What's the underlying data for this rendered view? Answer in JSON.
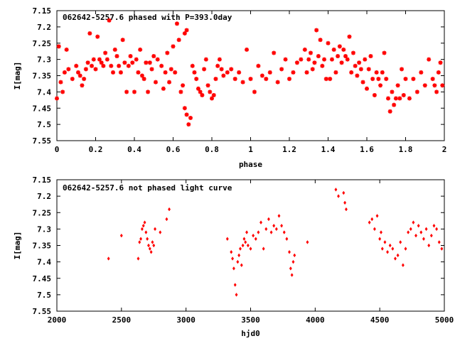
{
  "chart_data": [
    {
      "type": "scatter",
      "title": "062642-5257.6 phased with P=393.0day",
      "xlabel": "phase",
      "ylabel": "I[mag]",
      "xlim": [
        0,
        2
      ],
      "ylim": [
        7.15,
        7.55
      ],
      "y_inverted": true,
      "x_ticks": [
        0,
        0.2,
        0.4,
        0.6,
        0.8,
        1,
        1.2,
        1.4,
        1.6,
        1.8,
        2
      ],
      "x_tick_labels": [
        "0",
        "0.2",
        "0.4",
        "0.6",
        "0.8",
        "1",
        "1.2",
        "1.4",
        "1.6",
        "1.8",
        "2"
      ],
      "y_ticks": [
        7.15,
        7.2,
        7.25,
        7.3,
        7.35,
        7.4,
        7.45,
        7.5,
        7.55
      ],
      "y_tick_labels": [
        "7.15",
        "7.2",
        "7.25",
        "7.3",
        "7.35",
        "7.4",
        "7.45",
        "7.5",
        "7.55"
      ],
      "grid": false,
      "marker": "star",
      "color": "#ff0000",
      "series": [
        {
          "points": [
            [
              0.0,
              7.42
            ],
            [
              0.01,
              7.26
            ],
            [
              0.02,
              7.37
            ],
            [
              0.03,
              7.4
            ],
            [
              0.04,
              7.34
            ],
            [
              0.05,
              7.27
            ],
            [
              0.06,
              7.33
            ],
            [
              0.08,
              7.36
            ],
            [
              0.1,
              7.32
            ],
            [
              0.11,
              7.34
            ],
            [
              0.12,
              7.35
            ],
            [
              0.13,
              7.38
            ],
            [
              0.14,
              7.36
            ],
            [
              0.15,
              7.33
            ],
            [
              0.16,
              7.31
            ],
            [
              0.17,
              7.22
            ],
            [
              0.18,
              7.32
            ],
            [
              0.19,
              7.3
            ],
            [
              0.2,
              7.33
            ],
            [
              0.21,
              7.23
            ],
            [
              0.22,
              7.3
            ],
            [
              0.23,
              7.31
            ],
            [
              0.24,
              7.32
            ],
            [
              0.25,
              7.28
            ],
            [
              0.26,
              7.3
            ],
            [
              0.27,
              7.18
            ],
            [
              0.28,
              7.32
            ],
            [
              0.29,
              7.34
            ],
            [
              0.3,
              7.27
            ],
            [
              0.31,
              7.29
            ],
            [
              0.32,
              7.32
            ],
            [
              0.33,
              7.34
            ],
            [
              0.34,
              7.24
            ],
            [
              0.35,
              7.31
            ],
            [
              0.36,
              7.4
            ],
            [
              0.37,
              7.32
            ],
            [
              0.38,
              7.29
            ],
            [
              0.39,
              7.31
            ],
            [
              0.4,
              7.4
            ],
            [
              0.41,
              7.3
            ],
            [
              0.42,
              7.34
            ],
            [
              0.43,
              7.27
            ],
            [
              0.44,
              7.35
            ],
            [
              0.45,
              7.36
            ],
            [
              0.46,
              7.31
            ],
            [
              0.47,
              7.4
            ],
            [
              0.48,
              7.31
            ],
            [
              0.49,
              7.33
            ],
            [
              0.5,
              7.29
            ],
            [
              0.51,
              7.37
            ],
            [
              0.52,
              7.3
            ],
            [
              0.54,
              7.32
            ],
            [
              0.55,
              7.39
            ],
            [
              0.56,
              7.34
            ],
            [
              0.57,
              7.28
            ],
            [
              0.58,
              7.37
            ],
            [
              0.59,
              7.33
            ],
            [
              0.6,
              7.26
            ],
            [
              0.61,
              7.34
            ],
            [
              0.62,
              7.19
            ],
            [
              0.63,
              7.24
            ],
            [
              0.64,
              7.4
            ],
            [
              0.65,
              7.38
            ],
            [
              0.66,
              7.22
            ],
            [
              0.67,
              7.21
            ],
            [
              0.66,
              7.45
            ],
            [
              0.67,
              7.47
            ],
            [
              0.68,
              7.5
            ],
            [
              0.69,
              7.48
            ],
            [
              0.7,
              7.32
            ],
            [
              0.71,
              7.34
            ],
            [
              0.72,
              7.36
            ],
            [
              0.73,
              7.39
            ],
            [
              0.74,
              7.4
            ],
            [
              0.75,
              7.41
            ],
            [
              0.76,
              7.33
            ],
            [
              0.77,
              7.3
            ],
            [
              0.78,
              7.38
            ],
            [
              0.79,
              7.4
            ],
            [
              0.8,
              7.42
            ],
            [
              0.81,
              7.41
            ],
            [
              0.82,
              7.36
            ],
            [
              0.83,
              7.32
            ],
            [
              0.84,
              7.3
            ],
            [
              0.85,
              7.33
            ],
            [
              0.86,
              7.35
            ],
            [
              0.88,
              7.34
            ],
            [
              0.9,
              7.33
            ],
            [
              0.92,
              7.36
            ],
            [
              0.94,
              7.34
            ],
            [
              0.96,
              7.37
            ],
            [
              0.98,
              7.27
            ],
            [
              1.0,
              7.36
            ],
            [
              1.02,
              7.4
            ],
            [
              1.04,
              7.32
            ],
            [
              1.06,
              7.35
            ],
            [
              1.08,
              7.36
            ],
            [
              1.1,
              7.34
            ],
            [
              1.12,
              7.28
            ],
            [
              1.14,
              7.37
            ],
            [
              1.16,
              7.33
            ],
            [
              1.18,
              7.3
            ],
            [
              1.2,
              7.36
            ],
            [
              1.22,
              7.34
            ],
            [
              1.24,
              7.31
            ],
            [
              1.26,
              7.3
            ],
            [
              1.28,
              7.27
            ],
            [
              1.29,
              7.34
            ],
            [
              1.3,
              7.3
            ],
            [
              1.31,
              7.28
            ],
            [
              1.32,
              7.33
            ],
            [
              1.33,
              7.31
            ],
            [
              1.34,
              7.21
            ],
            [
              1.35,
              7.29
            ],
            [
              1.36,
              7.24
            ],
            [
              1.37,
              7.32
            ],
            [
              1.38,
              7.3
            ],
            [
              1.39,
              7.36
            ],
            [
              1.4,
              7.25
            ],
            [
              1.41,
              7.36
            ],
            [
              1.42,
              7.3
            ],
            [
              1.43,
              7.27
            ],
            [
              1.44,
              7.34
            ],
            [
              1.45,
              7.29
            ],
            [
              1.46,
              7.26
            ],
            [
              1.47,
              7.31
            ],
            [
              1.48,
              7.27
            ],
            [
              1.49,
              7.29
            ],
            [
              1.5,
              7.3
            ],
            [
              1.51,
              7.23
            ],
            [
              1.52,
              7.34
            ],
            [
              1.53,
              7.28
            ],
            [
              1.54,
              7.32
            ],
            [
              1.55,
              7.35
            ],
            [
              1.56,
              7.31
            ],
            [
              1.57,
              7.33
            ],
            [
              1.58,
              7.37
            ],
            [
              1.59,
              7.3
            ],
            [
              1.6,
              7.39
            ],
            [
              1.61,
              7.33
            ],
            [
              1.62,
              7.29
            ],
            [
              1.63,
              7.36
            ],
            [
              1.64,
              7.41
            ],
            [
              1.65,
              7.34
            ],
            [
              1.66,
              7.36
            ],
            [
              1.67,
              7.38
            ],
            [
              1.68,
              7.34
            ],
            [
              1.69,
              7.28
            ],
            [
              1.7,
              7.36
            ],
            [
              1.71,
              7.42
            ],
            [
              1.72,
              7.46
            ],
            [
              1.73,
              7.4
            ],
            [
              1.74,
              7.44
            ],
            [
              1.75,
              7.42
            ],
            [
              1.76,
              7.38
            ],
            [
              1.77,
              7.42
            ],
            [
              1.78,
              7.33
            ],
            [
              1.79,
              7.41
            ],
            [
              1.8,
              7.36
            ],
            [
              1.82,
              7.42
            ],
            [
              1.84,
              7.36
            ],
            [
              1.86,
              7.4
            ],
            [
              1.88,
              7.34
            ],
            [
              1.9,
              7.38
            ],
            [
              1.92,
              7.3
            ],
            [
              1.94,
              7.36
            ],
            [
              1.95,
              7.38
            ],
            [
              1.96,
              7.4
            ],
            [
              1.97,
              7.34
            ],
            [
              1.98,
              7.31
            ],
            [
              1.99,
              7.38
            ]
          ]
        }
      ]
    },
    {
      "type": "scatter",
      "title": "062642-5257.6 not phased light curve",
      "xlabel": "hjd0",
      "ylabel": "I[mag]",
      "xlim": [
        2000,
        5000
      ],
      "ylim": [
        7.15,
        7.55
      ],
      "y_inverted": true,
      "x_ticks": [
        2000,
        2500,
        3000,
        3500,
        4000,
        4500,
        5000
      ],
      "x_tick_labels": [
        "2000",
        "2500",
        "3000",
        "3500",
        "4000",
        "4500",
        "5000"
      ],
      "y_ticks": [
        7.15,
        7.2,
        7.25,
        7.3,
        7.35,
        7.4,
        7.45,
        7.5,
        7.55
      ],
      "y_tick_labels": [
        "7.15",
        "7.2",
        "7.25",
        "7.3",
        "7.35",
        "7.4",
        "7.45",
        "7.5",
        "7.55"
      ],
      "grid": false,
      "marker": "diamond",
      "color": "#ff0000",
      "series": [
        {
          "points": [
            [
              2400,
              7.39
            ],
            [
              2500,
              7.32
            ],
            [
              2630,
              7.39
            ],
            [
              2640,
              7.34
            ],
            [
              2650,
              7.33
            ],
            [
              2660,
              7.3
            ],
            [
              2670,
              7.29
            ],
            [
              2680,
              7.28
            ],
            [
              2690,
              7.31
            ],
            [
              2700,
              7.33
            ],
            [
              2710,
              7.35
            ],
            [
              2720,
              7.36
            ],
            [
              2730,
              7.37
            ],
            [
              2740,
              7.34
            ],
            [
              2750,
              7.35
            ],
            [
              2760,
              7.3
            ],
            [
              2800,
              7.31
            ],
            [
              2850,
              7.27
            ],
            [
              2870,
              7.24
            ],
            [
              3320,
              7.33
            ],
            [
              3350,
              7.37
            ],
            [
              3360,
              7.39
            ],
            [
              3370,
              7.42
            ],
            [
              3380,
              7.47
            ],
            [
              3390,
              7.5
            ],
            [
              3400,
              7.4
            ],
            [
              3410,
              7.38
            ],
            [
              3420,
              7.36
            ],
            [
              3430,
              7.41
            ],
            [
              3440,
              7.35
            ],
            [
              3450,
              7.33
            ],
            [
              3460,
              7.34
            ],
            [
              3470,
              7.31
            ],
            [
              3480,
              7.35
            ],
            [
              3500,
              7.36
            ],
            [
              3520,
              7.32
            ],
            [
              3540,
              7.33
            ],
            [
              3560,
              7.31
            ],
            [
              3580,
              7.28
            ],
            [
              3600,
              7.36
            ],
            [
              3620,
              7.3
            ],
            [
              3640,
              7.27
            ],
            [
              3660,
              7.31
            ],
            [
              3680,
              7.29
            ],
            [
              3700,
              7.3
            ],
            [
              3720,
              7.26
            ],
            [
              3740,
              7.29
            ],
            [
              3760,
              7.31
            ],
            [
              3780,
              7.33
            ],
            [
              3800,
              7.37
            ],
            [
              3810,
              7.42
            ],
            [
              3820,
              7.44
            ],
            [
              3830,
              7.4
            ],
            [
              3840,
              7.38
            ],
            [
              3940,
              7.34
            ],
            [
              4160,
              7.18
            ],
            [
              4180,
              7.2
            ],
            [
              4220,
              7.19
            ],
            [
              4230,
              7.22
            ],
            [
              4240,
              7.24
            ],
            [
              4420,
              7.28
            ],
            [
              4440,
              7.27
            ],
            [
              4460,
              7.3
            ],
            [
              4480,
              7.26
            ],
            [
              4500,
              7.33
            ],
            [
              4510,
              7.31
            ],
            [
              4520,
              7.36
            ],
            [
              4540,
              7.34
            ],
            [
              4560,
              7.37
            ],
            [
              4580,
              7.35
            ],
            [
              4600,
              7.36
            ],
            [
              4620,
              7.39
            ],
            [
              4640,
              7.38
            ],
            [
              4660,
              7.34
            ],
            [
              4680,
              7.41
            ],
            [
              4700,
              7.36
            ],
            [
              4720,
              7.31
            ],
            [
              4740,
              7.3
            ],
            [
              4760,
              7.28
            ],
            [
              4780,
              7.32
            ],
            [
              4800,
              7.29
            ],
            [
              4820,
              7.31
            ],
            [
              4840,
              7.33
            ],
            [
              4860,
              7.3
            ],
            [
              4880,
              7.35
            ],
            [
              4900,
              7.32
            ],
            [
              4920,
              7.29
            ],
            [
              4940,
              7.3
            ],
            [
              4960,
              7.34
            ],
            [
              4980,
              7.36
            ]
          ]
        }
      ]
    }
  ]
}
